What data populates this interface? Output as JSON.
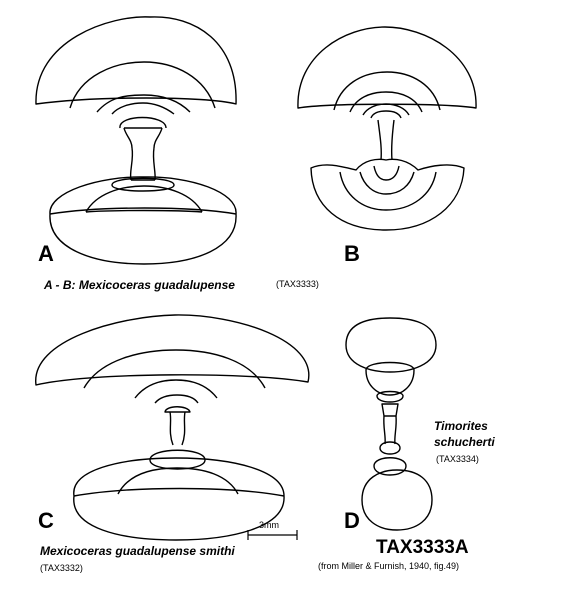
{
  "plate": {
    "figures": [
      {
        "letter": "A"
      },
      {
        "letter": "B"
      },
      {
        "letter": "C"
      },
      {
        "letter": "D"
      }
    ],
    "caption_ab": "A - B: Mexicoceras guadalupense",
    "tax_ab": "(TAX3333)",
    "caption_c": "Mexicoceras  guadalupense  smithi",
    "tax_c": "(TAX3332)",
    "caption_d_line1": "Timorites",
    "caption_d_line2": "schucherti",
    "tax_d": "(TAX3334)",
    "scale_label": "3mm",
    "plate_id": "TAX3333A",
    "source": "(from Miller & Furnish, 1940, fig.49)"
  },
  "colors": {
    "ink": "#000000",
    "paper": "#ffffff"
  }
}
